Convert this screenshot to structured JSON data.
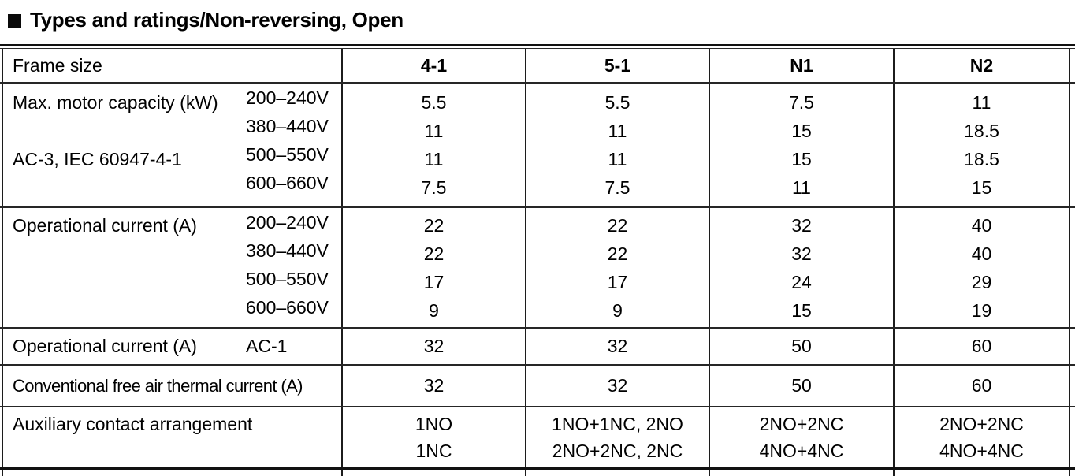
{
  "title": "Types and ratings/Non-reversing, Open",
  "table": {
    "frame_size_label": "Frame size",
    "frames": [
      "4-1",
      "5-1",
      "N1",
      "N2"
    ],
    "sections": [
      {
        "label_top": "Max. motor capacity (kW)",
        "label_bottom": "AC-3, IEC 60947-4-1",
        "rows": [
          {
            "voltage": "200–240V",
            "values": [
              "5.5",
              "5.5",
              "7.5",
              "11"
            ]
          },
          {
            "voltage": "380–440V",
            "values": [
              "11",
              "11",
              "15",
              "18.5"
            ]
          },
          {
            "voltage": "500–550V",
            "values": [
              "11",
              "11",
              "15",
              "18.5"
            ]
          },
          {
            "voltage": "600–660V",
            "values": [
              "7.5",
              "7.5",
              "11",
              "15"
            ]
          }
        ]
      },
      {
        "label_top": "Operational current (A)",
        "rows": [
          {
            "voltage": "200–240V",
            "values": [
              "22",
              "22",
              "32",
              "40"
            ]
          },
          {
            "voltage": "380–440V",
            "values": [
              "22",
              "22",
              "32",
              "40"
            ]
          },
          {
            "voltage": "500–550V",
            "values": [
              "17",
              "17",
              "24",
              "29"
            ]
          },
          {
            "voltage": "600–660V",
            "values": [
              "9",
              "9",
              "15",
              "19"
            ]
          }
        ]
      }
    ],
    "ac1_row": {
      "label": "Operational current (A)",
      "sublabel": "AC-1",
      "values": [
        "32",
        "32",
        "50",
        "60"
      ]
    },
    "thermal_row": {
      "label": "Conventional free air thermal current (A)",
      "values": [
        "32",
        "32",
        "50",
        "60"
      ]
    },
    "aux_row": {
      "label": "Auxiliary contact arrangement",
      "values": [
        [
          "1NO",
          "1NC"
        ],
        [
          "1NO+1NC, 2NO",
          "2NO+2NC, 2NC"
        ],
        [
          "2NO+2NC",
          "4NO+4NC"
        ],
        [
          "2NO+2NC",
          "4NO+4NC"
        ]
      ]
    }
  }
}
